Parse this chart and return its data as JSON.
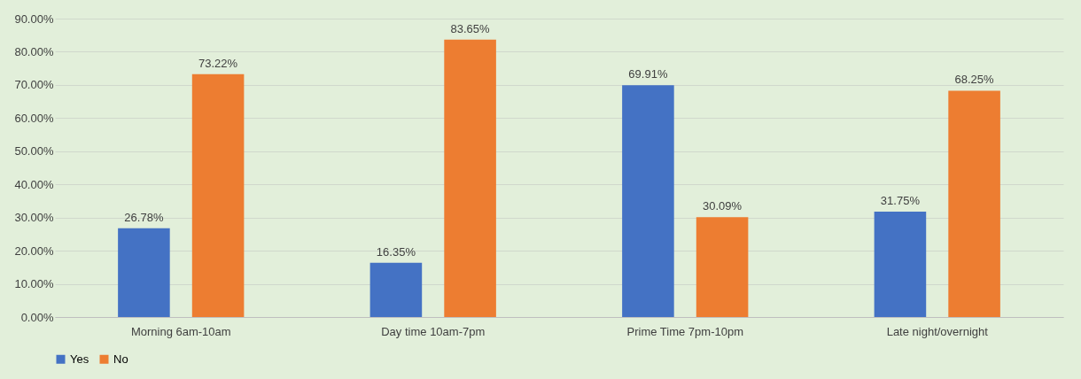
{
  "chart_data": {
    "type": "bar",
    "categories": [
      "Morning 6am-10am",
      "Day time 10am-7pm",
      "Prime Time 7pm-10pm",
      "Late night/overnight"
    ],
    "series": [
      {
        "name": "Yes",
        "color": "#4472c4",
        "values": [
          26.78,
          16.35,
          69.91,
          31.75
        ],
        "value_labels": [
          "26.78%",
          "16.35%",
          "69.91%",
          "31.75%"
        ]
      },
      {
        "name": "No",
        "color": "#ed7d31",
        "values": [
          73.22,
          83.65,
          30.09,
          68.25
        ],
        "value_labels": [
          "73.22%",
          "83.65%",
          "30.09%",
          "68.25%"
        ]
      }
    ],
    "ylim": [
      0,
      90
    ],
    "yticks": [
      {
        "value": 0,
        "label": "0.00%"
      },
      {
        "value": 10,
        "label": "10.00%"
      },
      {
        "value": 20,
        "label": "20.00%"
      },
      {
        "value": 30,
        "label": "30.00%"
      },
      {
        "value": 40,
        "label": "40.00%"
      },
      {
        "value": 50,
        "label": "50.00%"
      },
      {
        "value": 60,
        "label": "60.00%"
      },
      {
        "value": 70,
        "label": "70.00%"
      },
      {
        "value": 80,
        "label": "80.00%"
      },
      {
        "value": 90,
        "label": "90.00%"
      }
    ],
    "grid": "y",
    "legend": "bottom"
  }
}
